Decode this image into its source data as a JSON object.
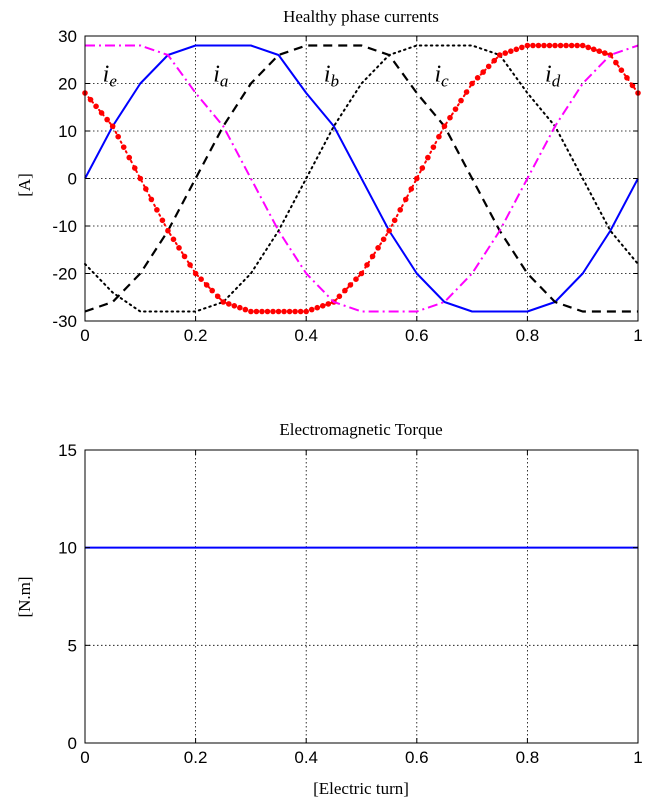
{
  "chart_data": [
    {
      "type": "line",
      "title": "Healthy phase currents",
      "xlabel": "",
      "ylabel": "[A]",
      "xlim": [
        0,
        1
      ],
      "ylim": [
        -30,
        30
      ],
      "xticks": [
        "0",
        "0.2",
        "0.4",
        "0.6",
        "0.8",
        "1"
      ],
      "yticks": [
        "-30",
        "-20",
        "-10",
        "0",
        "10",
        "20",
        "30"
      ],
      "grid": true,
      "amplitude": 28,
      "series": [
        {
          "label_main": "i",
          "label_sub": "a",
          "color": "#0000ff",
          "style": "solid",
          "x": [
            0,
            0.05,
            0.1,
            0.15,
            0.2,
            0.3,
            0.35,
            0.4,
            0.45,
            0.5,
            0.55,
            0.6,
            0.65,
            0.7,
            0.8,
            0.85,
            0.9,
            0.95,
            1
          ],
          "y": [
            0,
            11,
            20,
            26,
            28,
            28,
            26,
            18,
            11,
            0,
            -11,
            -20,
            -26,
            -28,
            -28,
            -26,
            -20,
            -11,
            0
          ]
        },
        {
          "label_main": "i",
          "label_sub": "b",
          "color": "#000000",
          "style": "dashed",
          "x": [
            0,
            0.05,
            0.1,
            0.15,
            0.2,
            0.25,
            0.3,
            0.35,
            0.4,
            0.5,
            0.55,
            0.6,
            0.65,
            0.7,
            0.75,
            0.8,
            0.85,
            0.9,
            1
          ],
          "y": [
            -28,
            -26,
            -20,
            -11,
            0,
            11,
            20,
            26,
            28,
            28,
            26,
            18,
            11,
            0,
            -11,
            -20,
            -26,
            -28,
            -28
          ]
        },
        {
          "label_main": "i",
          "label_sub": "c",
          "color": "#000000",
          "style": "dotted",
          "x": [
            0,
            0.05,
            0.1,
            0.2,
            0.25,
            0.3,
            0.35,
            0.4,
            0.45,
            0.5,
            0.55,
            0.6,
            0.7,
            0.75,
            0.8,
            0.85,
            0.9,
            0.95,
            1
          ],
          "y": [
            -18,
            -24,
            -28,
            -28,
            -26,
            -20,
            -11,
            0,
            11,
            20,
            26,
            28,
            28,
            26,
            18,
            11,
            0,
            -11,
            -18
          ]
        },
        {
          "label_main": "i",
          "label_sub": "d",
          "color": "#ff0000",
          "style": "dotted-marker",
          "x": [
            0,
            0.05,
            0.1,
            0.15,
            0.2,
            0.25,
            0.3,
            0.4,
            0.45,
            0.5,
            0.55,
            0.6,
            0.65,
            0.7,
            0.75,
            0.8,
            0.9,
            0.95,
            1
          ],
          "y": [
            18,
            11,
            0,
            -11,
            -20,
            -26,
            -28,
            -28,
            -26,
            -20,
            -11,
            0,
            11,
            20,
            26,
            28,
            28,
            26,
            18
          ]
        },
        {
          "label_main": "i",
          "label_sub": "e",
          "color": "#ff00ff",
          "style": "dash-dot",
          "x": [
            0,
            0.1,
            0.15,
            0.2,
            0.25,
            0.3,
            0.35,
            0.4,
            0.45,
            0.5,
            0.6,
            0.65,
            0.7,
            0.75,
            0.8,
            0.85,
            0.9,
            0.95,
            1
          ],
          "y": [
            28,
            28,
            26,
            18,
            11,
            0,
            -11,
            -20,
            -26,
            -28,
            -28,
            -26,
            -20,
            -11,
            0,
            11,
            20,
            26,
            28
          ]
        }
      ]
    },
    {
      "type": "line",
      "title": "Electromagnetic Torque",
      "xlabel": "[Electric turn]",
      "ylabel": "[N.m]",
      "xlim": [
        0,
        1
      ],
      "ylim": [
        0,
        15
      ],
      "xticks": [
        "0",
        "0.2",
        "0.4",
        "0.6",
        "0.8",
        "1"
      ],
      "yticks": [
        "0",
        "5",
        "10",
        "15"
      ],
      "grid": true,
      "series": [
        {
          "color": "#0000ff",
          "style": "solid",
          "x": [
            0,
            1
          ],
          "y": [
            10,
            10
          ]
        }
      ]
    }
  ]
}
